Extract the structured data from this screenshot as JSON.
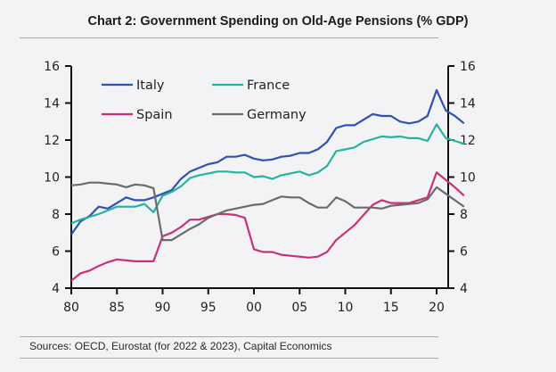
{
  "title": "Chart 2: Government Spending on Old-Age Pensions (% GDP)",
  "source": "Sources:  OECD, Eurostat (for 2022 & 2023), Capital Economics",
  "chart_data": {
    "type": "line",
    "title": "Chart 2: Government Spending on Old-Age Pensions (% GDP)",
    "xlabel": "",
    "ylabel": "",
    "xlim": [
      1980,
      2023
    ],
    "ylim": [
      4,
      16
    ],
    "y_ticks": [
      4,
      6,
      8,
      10,
      12,
      14,
      16
    ],
    "y_tick_labels": [
      "4",
      "6",
      "8",
      "10",
      "12",
      "14",
      "16"
    ],
    "x_ticks": [
      1980,
      1985,
      1990,
      1995,
      2000,
      2005,
      2010,
      2015,
      2020
    ],
    "x_tick_labels": [
      "80",
      "85",
      "90",
      "95",
      "00",
      "05",
      "10",
      "15",
      "20"
    ],
    "dual_y_axis_mirrored": true,
    "grid": false,
    "legend_position": "top-left",
    "x": [
      1980,
      1981,
      1982,
      1983,
      1984,
      1985,
      1986,
      1987,
      1988,
      1989,
      1990,
      1991,
      1992,
      1993,
      1994,
      1995,
      1996,
      1997,
      1998,
      1999,
      2000,
      2001,
      2002,
      2003,
      2004,
      2005,
      2006,
      2007,
      2008,
      2009,
      2010,
      2011,
      2012,
      2013,
      2014,
      2015,
      2016,
      2017,
      2018,
      2019,
      2020,
      2021,
      2022,
      2023
    ],
    "series": [
      {
        "name": "Italy",
        "color": "#2d52b3",
        "values": [
          6.9,
          7.6,
          7.9,
          8.4,
          8.3,
          8.6,
          8.9,
          8.75,
          8.75,
          8.9,
          9.1,
          9.3,
          9.9,
          10.3,
          10.5,
          10.7,
          10.8,
          11.1,
          11.1,
          11.2,
          11.0,
          10.9,
          10.95,
          11.1,
          11.15,
          11.3,
          11.3,
          11.5,
          11.9,
          12.65,
          12.8,
          12.8,
          13.1,
          13.4,
          13.3,
          13.3,
          13.0,
          12.9,
          13.0,
          13.3,
          14.7,
          13.6,
          13.3,
          12.9
        ]
      },
      {
        "name": "France",
        "color": "#25b3a0",
        "values": [
          7.5,
          7.7,
          7.85,
          8.0,
          8.2,
          8.4,
          8.4,
          8.4,
          8.55,
          8.1,
          9.0,
          9.2,
          9.5,
          9.95,
          10.1,
          10.2,
          10.3,
          10.3,
          10.25,
          10.25,
          10.0,
          10.05,
          9.9,
          10.1,
          10.2,
          10.3,
          10.1,
          10.25,
          10.6,
          11.4,
          11.5,
          11.6,
          11.9,
          12.05,
          12.2,
          12.15,
          12.2,
          12.1,
          12.1,
          11.95,
          12.85,
          12.1,
          11.95,
          11.8
        ]
      },
      {
        "name": "Spain",
        "color": "#c9307a",
        "values": [
          4.4,
          4.8,
          4.95,
          5.2,
          5.4,
          5.55,
          5.5,
          5.45,
          5.45,
          5.45,
          6.8,
          7.0,
          7.3,
          7.7,
          7.7,
          7.85,
          8.0,
          8.0,
          7.95,
          7.8,
          6.1,
          5.95,
          5.95,
          5.8,
          5.75,
          5.7,
          5.65,
          5.7,
          5.95,
          6.6,
          7.0,
          7.4,
          7.95,
          8.5,
          8.75,
          8.6,
          8.6,
          8.6,
          8.75,
          8.9,
          10.25,
          9.85,
          9.45,
          9.0
        ]
      },
      {
        "name": "Germany",
        "color": "#6b6b6b",
        "values": [
          9.55,
          9.6,
          9.7,
          9.7,
          9.65,
          9.6,
          9.45,
          9.6,
          9.55,
          9.4,
          6.6,
          6.6,
          6.9,
          7.2,
          7.45,
          7.8,
          8.0,
          8.2,
          8.3,
          8.4,
          8.5,
          8.55,
          8.75,
          8.95,
          8.9,
          8.9,
          8.6,
          8.35,
          8.35,
          8.9,
          8.7,
          8.35,
          8.35,
          8.35,
          8.3,
          8.45,
          8.5,
          8.55,
          8.6,
          8.8,
          9.45,
          9.1,
          8.75,
          8.4
        ]
      }
    ]
  }
}
